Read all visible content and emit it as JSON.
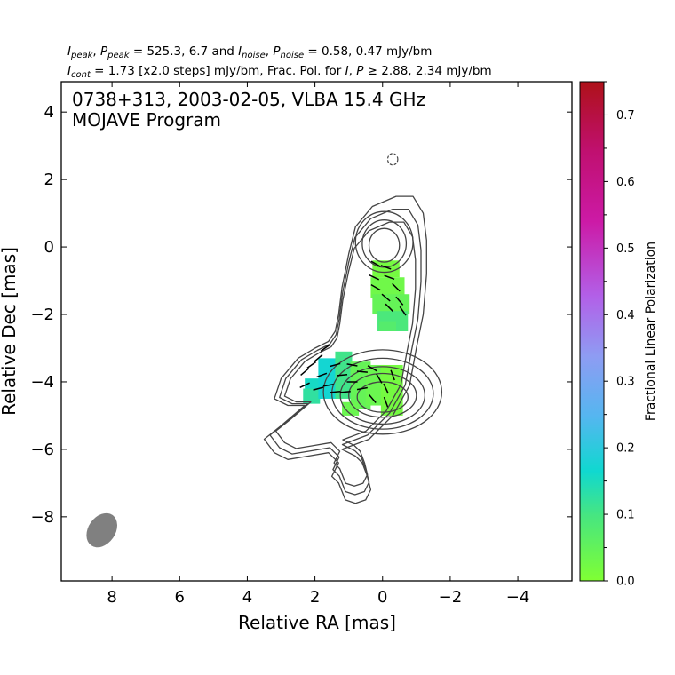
{
  "header": {
    "line1": {
      "i": "I",
      "i_sub": "peak",
      "sep1": ", ",
      "p": "P",
      "p_sub": "peak",
      "v1": " = 525.3, 6.7 and ",
      "i2": "I",
      "i2_sub": "noise",
      "sep2": ", ",
      "p2": "P",
      "p2_sub": "noise",
      "v2": " = 0.58, 0.47 mJy/bm"
    },
    "line2": {
      "i": "I",
      "i_sub": "cont",
      "v1": " = 1.73 [x2.0 steps] mJy/bm, Frac. Pol. for ",
      "i2": "I",
      "sep": ", ",
      "p": "P",
      "v2": " ≥  2.88, 2.34 mJy/bm"
    }
  },
  "chart_data": {
    "type": "contour",
    "title": "0738+313, 2003-02-05, VLBA 15.4 GHz",
    "subtitle": "MOJAVE Program",
    "xlabel": "Relative RA [mas]",
    "ylabel": "Relative Dec [mas]",
    "xlim": [
      9.5,
      -5.6
    ],
    "ylim": [
      -9.9,
      4.9
    ],
    "x_ticks": [
      8,
      6,
      4,
      2,
      0,
      -2,
      -4
    ],
    "x_tick_labels": [
      "8",
      "6",
      "4",
      "2",
      "0",
      "−2",
      "−4"
    ],
    "y_ticks": [
      4,
      2,
      0,
      -2,
      -4,
      -6,
      -8
    ],
    "y_tick_labels": [
      "4",
      "2",
      "0",
      "−2",
      "−4",
      "−6",
      "−8"
    ],
    "colorbar": {
      "label": "Fractional Linear Polarization",
      "range": [
        0.0,
        0.75
      ],
      "ticks": [
        0.0,
        0.1,
        0.2,
        0.3,
        0.4,
        0.5,
        0.6,
        0.7
      ],
      "tick_labels": [
        "0.0",
        "0.1",
        "0.2",
        "0.3",
        "0.4",
        "0.5",
        "0.6",
        "0.7"
      ],
      "colors": [
        "#80ff33",
        "#47e680",
        "#10d8d0",
        "#55b6f0",
        "#8e9cf3",
        "#b260e8",
        "#cc1aa6",
        "#ae1119"
      ]
    },
    "beam": {
      "x": 8.3,
      "y": -8.4,
      "major_mas": 1.1,
      "minor_mas": 0.8,
      "pa_deg": 35,
      "color": "#808080"
    },
    "contours": {
      "color": "#444444",
      "outer": [
        [
          2.3,
          -4.7
        ],
        [
          3.0,
          -5.3
        ],
        [
          3.5,
          -5.7
        ],
        [
          3.2,
          -6.1
        ],
        [
          2.8,
          -6.3
        ],
        [
          2.2,
          -6.2
        ],
        [
          1.6,
          -6.1
        ],
        [
          1.3,
          -6.4
        ],
        [
          1.5,
          -6.8
        ],
        [
          1.3,
          -7.0
        ],
        [
          1.1,
          -7.5
        ],
        [
          0.8,
          -7.6
        ],
        [
          0.5,
          -7.5
        ],
        [
          0.35,
          -7.2
        ],
        [
          0.45,
          -6.8
        ],
        [
          0.6,
          -6.4
        ],
        [
          0.8,
          -6.2
        ],
        [
          1.2,
          -6.0
        ],
        [
          0.4,
          -5.7
        ],
        [
          -0.3,
          -5.0
        ],
        [
          -0.8,
          -4.1
        ],
        [
          -1.0,
          -3.0
        ],
        [
          -1.2,
          -2.0
        ],
        [
          -1.3,
          -0.8
        ],
        [
          -1.3,
          0.2
        ],
        [
          -1.2,
          1.0
        ],
        [
          -0.9,
          1.5
        ],
        [
          -0.4,
          1.5
        ],
        [
          0.3,
          1.2
        ],
        [
          0.8,
          0.6
        ],
        [
          1.0,
          -0.2
        ],
        [
          1.2,
          -1.2
        ],
        [
          1.3,
          -2.0
        ],
        [
          1.4,
          -2.5
        ],
        [
          1.6,
          -2.8
        ],
        [
          2.0,
          -3.0
        ],
        [
          2.5,
          -3.3
        ],
        [
          3.0,
          -3.9
        ],
        [
          3.2,
          -4.5
        ],
        [
          2.8,
          -4.7
        ]
      ],
      "levels": [
        {
          "cx": 0.0,
          "cy": -4.3,
          "rx": 1.75,
          "ry": 1.25
        },
        {
          "cx": 0.0,
          "cy": -4.35,
          "rx": 1.5,
          "ry": 1.05
        },
        {
          "cx": 0.0,
          "cy": -4.4,
          "rx": 1.25,
          "ry": 0.85
        },
        {
          "cx": 0.0,
          "cy": -4.4,
          "rx": 1.0,
          "ry": 0.65
        },
        {
          "cx": 0.0,
          "cy": -4.45,
          "rx": 0.75,
          "ry": 0.45
        },
        {
          "cx": -0.05,
          "cy": 0.15,
          "rx": 0.85,
          "ry": 0.9
        },
        {
          "cx": -0.05,
          "cy": 0.1,
          "rx": 0.65,
          "ry": 0.7
        },
        {
          "cx": -0.05,
          "cy": 0.05,
          "rx": 0.45,
          "ry": 0.5
        }
      ],
      "noise_blob": {
        "cx": -0.3,
        "cy": 2.6,
        "rx": 0.15,
        "ry": 0.17
      }
    },
    "polarization_pixels": [
      {
        "x": 0.3,
        "y": -0.4,
        "w": 0.8,
        "h": 0.5,
        "frac": 0.02
      },
      {
        "x": 0.35,
        "y": -0.9,
        "w": 1.0,
        "h": 0.6,
        "frac": 0.03
      },
      {
        "x": 0.3,
        "y": -1.4,
        "w": 1.1,
        "h": 0.6,
        "frac": 0.05
      },
      {
        "x": 0.15,
        "y": -1.9,
        "w": 0.9,
        "h": 0.6,
        "frac": 0.1
      },
      {
        "x": 0.1,
        "y": -2.2,
        "w": 0.5,
        "h": 0.3,
        "frac": 0.08
      },
      {
        "x": 2.3,
        "y": -3.9,
        "w": 0.5,
        "h": 0.6,
        "frac": 0.2
      },
      {
        "x": 2.35,
        "y": -4.2,
        "w": 0.5,
        "h": 0.45,
        "frac": 0.15
      },
      {
        "x": 1.9,
        "y": -3.3,
        "w": 0.55,
        "h": 1.2,
        "frac": 0.22
      },
      {
        "x": 1.4,
        "y": -3.1,
        "w": 0.5,
        "h": 1.4,
        "frac": 0.12
      },
      {
        "x": 0.95,
        "y": -3.4,
        "w": 0.6,
        "h": 1.4,
        "frac": 0.05
      },
      {
        "x": 0.5,
        "y": -3.5,
        "w": 0.55,
        "h": 1.2,
        "frac": 0.04
      },
      {
        "x": 1.2,
        "y": -4.6,
        "w": 0.5,
        "h": 0.4,
        "frac": 0.04
      },
      {
        "x": 0.05,
        "y": -3.5,
        "w": 0.65,
        "h": 1.5,
        "frac": 0.02
      }
    ],
    "evpa_vectors": [
      {
        "x": 0.2,
        "y": -0.5,
        "angle_deg": 150
      },
      {
        "x": -0.1,
        "y": -0.6,
        "angle_deg": 160
      },
      {
        "x": 0.25,
        "y": -0.9,
        "angle_deg": 155
      },
      {
        "x": -0.2,
        "y": -0.9,
        "angle_deg": 160
      },
      {
        "x": 0.2,
        "y": -1.2,
        "angle_deg": 150
      },
      {
        "x": -0.4,
        "y": -1.2,
        "angle_deg": 135
      },
      {
        "x": -0.1,
        "y": -1.5,
        "angle_deg": 140
      },
      {
        "x": -0.5,
        "y": -1.6,
        "angle_deg": 130
      },
      {
        "x": -0.2,
        "y": -1.8,
        "angle_deg": 135
      },
      {
        "x": -0.6,
        "y": -1.9,
        "angle_deg": 125
      },
      {
        "x": 2.3,
        "y": -3.7,
        "angle_deg": 40
      },
      {
        "x": 2.1,
        "y": -3.5,
        "angle_deg": 35
      },
      {
        "x": 1.9,
        "y": -3.3,
        "angle_deg": 40
      },
      {
        "x": 1.7,
        "y": -3.0,
        "angle_deg": 35
      },
      {
        "x": 2.3,
        "y": -4.1,
        "angle_deg": 25
      },
      {
        "x": 1.8,
        "y": -3.8,
        "angle_deg": 20
      },
      {
        "x": 1.4,
        "y": -3.5,
        "angle_deg": 15
      },
      {
        "x": 1.6,
        "y": -4.1,
        "angle_deg": 10
      },
      {
        "x": 1.2,
        "y": -3.8,
        "angle_deg": 5
      },
      {
        "x": 0.9,
        "y": -3.5,
        "angle_deg": 170
      },
      {
        "x": 0.9,
        "y": -4.0,
        "angle_deg": 0
      },
      {
        "x": 1.1,
        "y": -4.3,
        "angle_deg": 5
      },
      {
        "x": 0.6,
        "y": -3.7,
        "angle_deg": 175
      },
      {
        "x": 0.6,
        "y": -4.2,
        "angle_deg": 10
      },
      {
        "x": 0.3,
        "y": -3.6,
        "angle_deg": 150
      },
      {
        "x": 0.1,
        "y": -3.9,
        "angle_deg": 120
      },
      {
        "x": -0.1,
        "y": -4.2,
        "angle_deg": 115
      },
      {
        "x": -0.3,
        "y": -3.8,
        "angle_deg": 110
      },
      {
        "x": -0.1,
        "y": -4.6,
        "angle_deg": 110
      },
      {
        "x": 0.3,
        "y": -4.5,
        "angle_deg": 130
      },
      {
        "x": 1.9,
        "y": -4.2,
        "angle_deg": 15
      },
      {
        "x": 1.4,
        "y": -4.3,
        "angle_deg": 5
      }
    ]
  }
}
